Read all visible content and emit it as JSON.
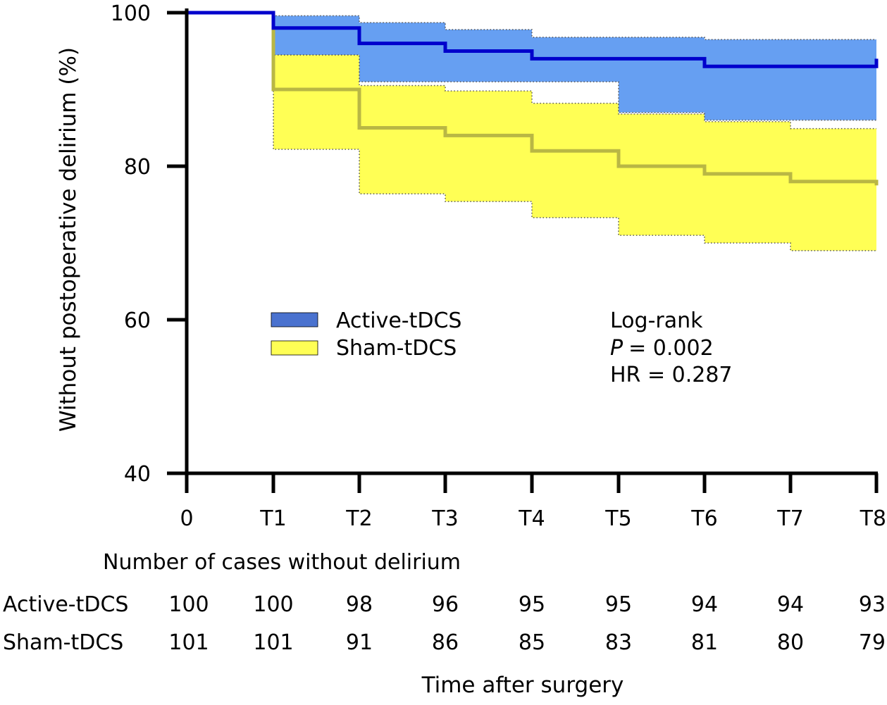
{
  "chart_data": {
    "type": "line",
    "title": "",
    "xlabel": "Time after surgery",
    "ylabel": "Without postoperative delirium (%)",
    "ylim": [
      40,
      100
    ],
    "yticks": [
      "100",
      "80",
      "60",
      "40"
    ],
    "ytick_values": [
      100,
      80,
      60,
      40
    ],
    "categories": [
      "0",
      "T1",
      "T2",
      "T3",
      "T4",
      "T5",
      "T6",
      "T7",
      "T8"
    ],
    "grid": false,
    "legend_position": "center-left",
    "series": [
      {
        "name": "Active-tDCS",
        "style": "step",
        "values": [
          100,
          98,
          96,
          95,
          94,
          94,
          93,
          93,
          94
        ],
        "ci_upper": [
          100,
          99.6,
          98.7,
          97.8,
          96.8,
          96.8,
          96.5,
          96.5,
          96.5
        ],
        "ci_lower": [
          100,
          94.5,
          91,
          91,
          91,
          87,
          86,
          86,
          86
        ],
        "line_color": "#0000cc",
        "band_color": "#669ff2",
        "legend_color": "#4a72cf"
      },
      {
        "name": "Sham-tDCS",
        "style": "step",
        "values": [
          100,
          90,
          85,
          84,
          82,
          80,
          79,
          78,
          77.5
        ],
        "ci_upper": [
          100,
          94.5,
          90.5,
          89.8,
          88.2,
          86.8,
          85.8,
          84.9,
          84.9
        ],
        "ci_lower": [
          100,
          82.2,
          76.4,
          75.4,
          73.3,
          71,
          70,
          69,
          69
        ],
        "line_color": "#b9b744",
        "band_color": "#ffff55",
        "legend_color": "#ffff55"
      }
    ],
    "annotations": {
      "test": "Log-rank",
      "p_label": "P",
      "p_value": "= 0.002",
      "hr": "HR = 0.287"
    },
    "table": {
      "title": "Number of cases without delirium",
      "rows": [
        {
          "label": "Active-tDCS",
          "values": [
            "100",
            "100",
            "98",
            "96",
            "95",
            "95",
            "94",
            "94",
            "93"
          ]
        },
        {
          "label": "Sham-tDCS",
          "values": [
            "101",
            "101",
            "91",
            "86",
            "85",
            "83",
            "81",
            "80",
            "79"
          ]
        }
      ]
    }
  }
}
